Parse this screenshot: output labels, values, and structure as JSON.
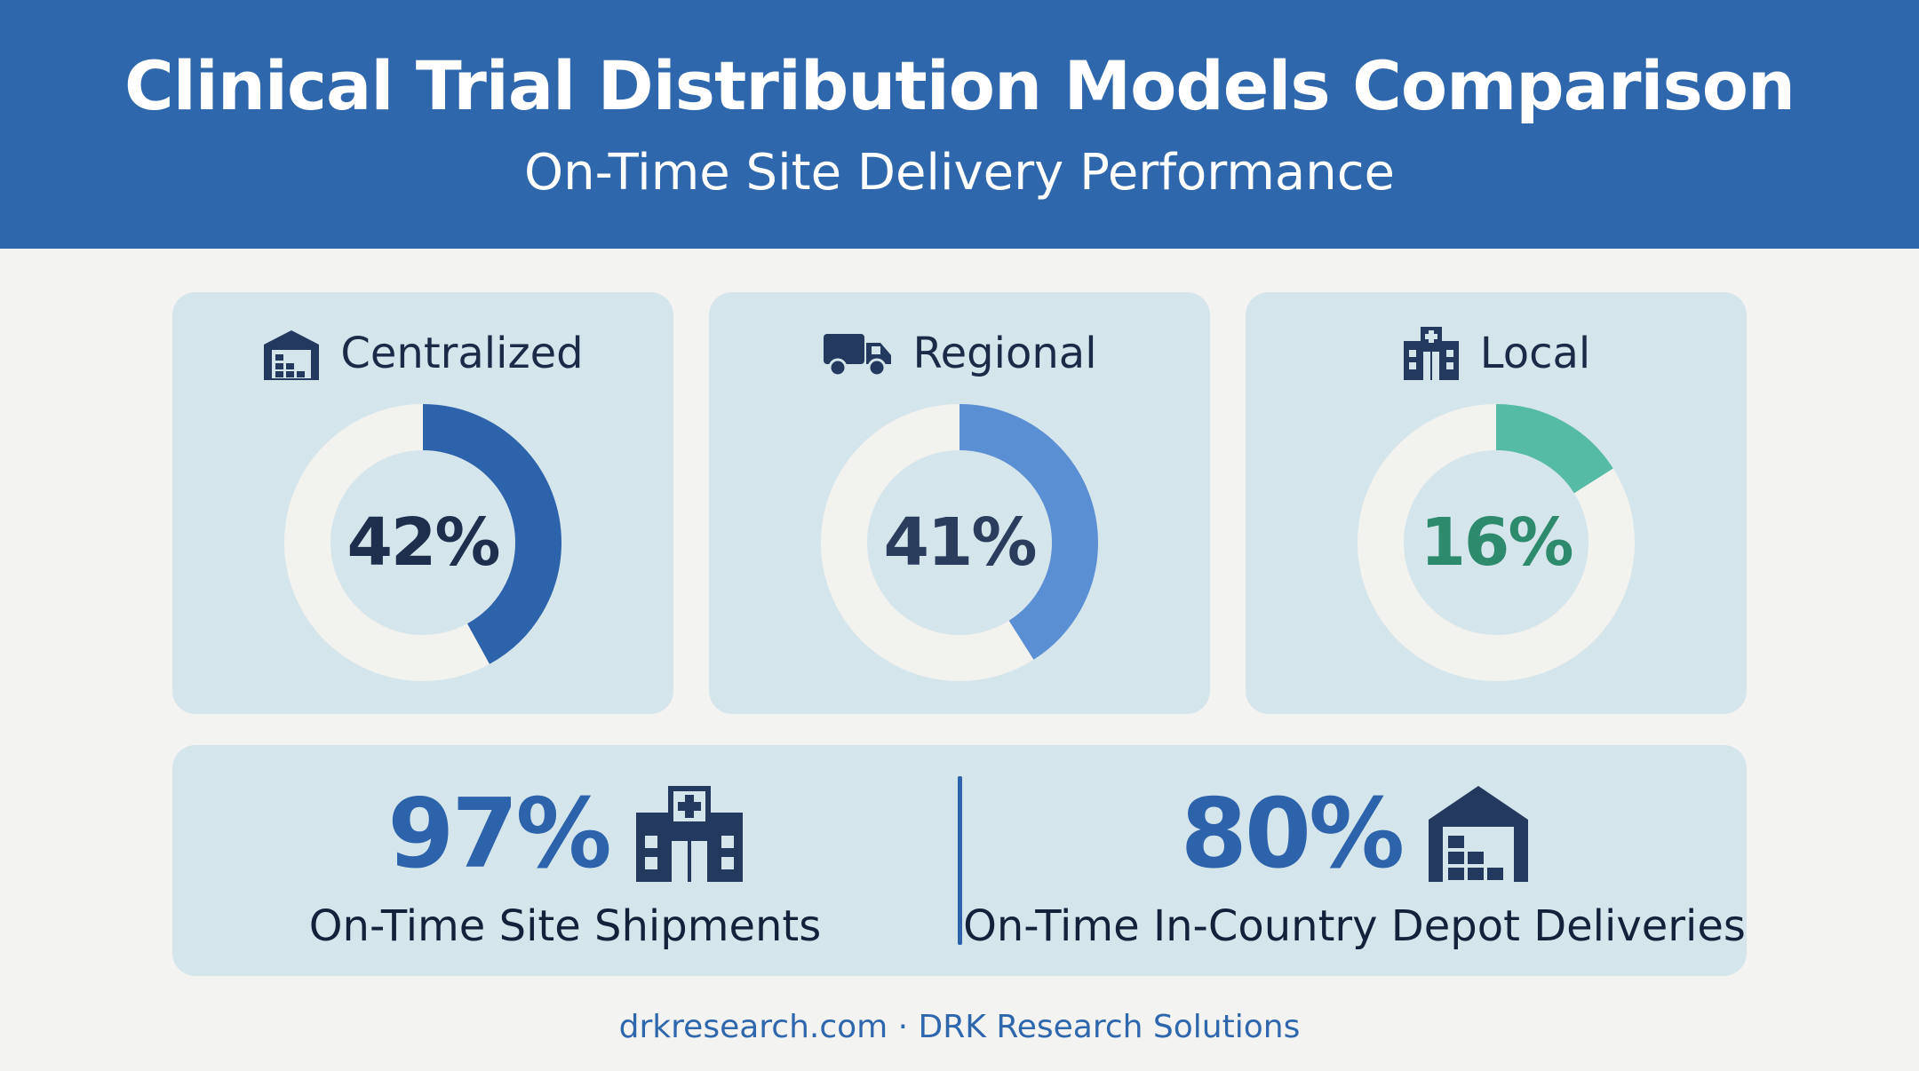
{
  "header": {
    "title": "Clinical Trial Distribution Models Comparison",
    "subtitle": "On-Time Site Delivery Performance"
  },
  "chart_data": {
    "type": "donut",
    "series": [
      {
        "name": "Centralized",
        "value": 42,
        "label": "42%",
        "icon": "warehouse-icon",
        "color": "#2c63ab",
        "text_color": "#1e2f4d"
      },
      {
        "name": "Regional",
        "value": 41,
        "label": "41%",
        "icon": "truck-icon",
        "color": "#5b8fd3",
        "text_color": "#2b3d5c"
      },
      {
        "name": "Local",
        "value": 16,
        "label": "16%",
        "icon": "clinic-icon",
        "color": "#55bba5",
        "text_color": "#2e8a6c"
      }
    ],
    "track_color": "#f2f2ef",
    "scale_max": 100
  },
  "stats": [
    {
      "value": "97%",
      "label": "On-Time Site Shipments",
      "icon": "hospital-icon"
    },
    {
      "value": "80%",
      "label": "On-Time In-Country Depot Deliveries",
      "icon": "depot-icon"
    }
  ],
  "footer": {
    "text": "drkresearch.com · DRK Research Solutions"
  },
  "colors": {
    "header_bg": "#2f67ad",
    "card_bg": "#d5e5ec",
    "page_bg": "#f3f3f1",
    "icon_color": "#23395d"
  }
}
